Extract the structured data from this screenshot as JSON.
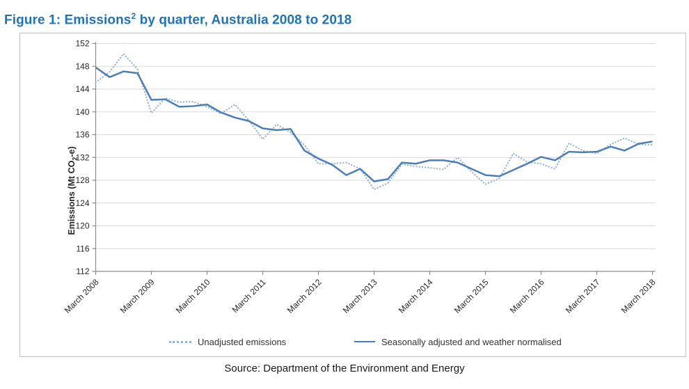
{
  "title": {
    "prefix": "Figure 1: Emissions",
    "superscript": "2",
    "suffix": " by quarter, Australia 2008 to 2018"
  },
  "source": "Source: Department of the Environment and Energy",
  "chart_data": {
    "type": "line",
    "title": "Emissions by quarter, Australia 2008 to 2018",
    "ylabel": {
      "prefix": "Emissions (Mt CO",
      "sub": "2",
      "suffix": "-e)"
    },
    "ylim": [
      112,
      152
    ],
    "ytick_step": 4,
    "grid": "horizontal",
    "legend_position": "bottom-inside",
    "x_tick_every": 4,
    "x_tick_labels": [
      "March 2008",
      "March 2009",
      "March 2010",
      "March 2011",
      "March 2012",
      "March 2013",
      "March 2014",
      "March 2015",
      "March 2016",
      "March 2017",
      "March 2018"
    ],
    "categories": [
      "March 2008",
      "June 2008",
      "September 2008",
      "December 2008",
      "March 2009",
      "June 2009",
      "September 2009",
      "December 2009",
      "March 2010",
      "June 2010",
      "September 2010",
      "December 2010",
      "March 2011",
      "June 2011",
      "September 2011",
      "December 2011",
      "March 2012",
      "June 2012",
      "September 2012",
      "December 2012",
      "March 2013",
      "June 2013",
      "September 2013",
      "December 2013",
      "March 2014",
      "June 2014",
      "September 2014",
      "December 2014",
      "March 2015",
      "June 2015",
      "September 2015",
      "December 2015",
      "March 2016",
      "June 2016",
      "September 2016",
      "December 2016",
      "March 2017",
      "June 2017",
      "September 2017",
      "December 2017",
      "March 2018"
    ],
    "series": [
      {
        "name": "Unadjusted emissions",
        "style": "dotted",
        "color": "#95b3d7",
        "values": [
          145.2,
          147.0,
          150.2,
          147.5,
          139.8,
          142.4,
          141.7,
          141.8,
          140.9,
          139.7,
          141.3,
          138.5,
          135.2,
          137.8,
          136.4,
          134.2,
          130.9,
          130.9,
          131.1,
          130.0,
          126.4,
          127.5,
          130.8,
          130.4,
          130.2,
          129.9,
          132.0,
          129.5,
          127.3,
          128.3,
          132.7,
          131.2,
          130.9,
          130.0,
          134.5,
          133.2,
          132.7,
          134.3,
          135.4,
          134.3,
          134.2
        ]
      },
      {
        "name": "Seasonally adjusted and weather normalised",
        "style": "solid",
        "color": "#4a7ebb",
        "values": [
          147.8,
          146.1,
          147.1,
          146.8,
          142.1,
          142.2,
          140.9,
          141.0,
          141.3,
          139.9,
          139.0,
          138.4,
          137.1,
          136.8,
          137.0,
          133.2,
          131.8,
          130.7,
          128.9,
          130.0,
          127.8,
          128.2,
          131.1,
          130.9,
          131.5,
          131.5,
          131.1,
          130.0,
          128.9,
          128.7,
          129.8,
          130.9,
          132.1,
          131.5,
          133.0,
          132.9,
          133.0,
          133.9,
          133.2,
          134.4,
          134.8
        ]
      }
    ],
    "axis_color": "#8c8c8c",
    "gridline_color": "#d9d9d9",
    "tick_label_color": "#262626"
  }
}
